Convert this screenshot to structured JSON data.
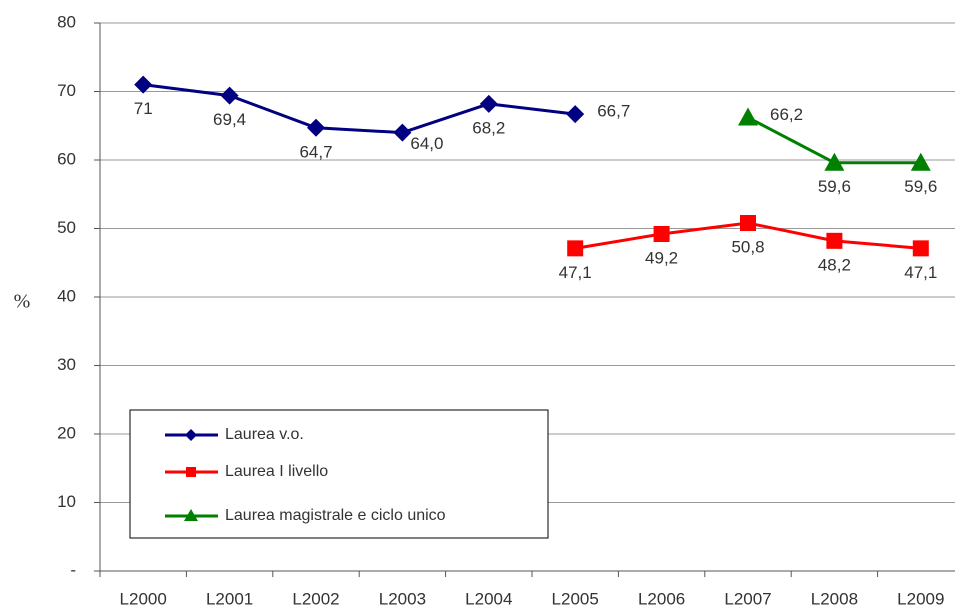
{
  "chart_data": {
    "type": "line",
    "ylabel": "%",
    "categories": [
      "L2000",
      "L2001",
      "L2002",
      "L2003",
      "L2004",
      "L2005",
      "L2006",
      "L2007",
      "L2008",
      "L2009"
    ],
    "series": [
      {
        "name": "Laurea v.o.",
        "color": "#000080",
        "marker": "diamond",
        "values": [
          71,
          69.4,
          64.7,
          64.0,
          68.2,
          66.7,
          null,
          null,
          null,
          null
        ],
        "value_labels": [
          "71",
          "69,4",
          "64,7",
          "64,0",
          "68,2",
          "66,7",
          null,
          null,
          null,
          null
        ]
      },
      {
        "name": "Laurea I livello",
        "color": "#ff0000",
        "marker": "square",
        "values": [
          null,
          null,
          null,
          null,
          null,
          47.1,
          49.2,
          50.8,
          48.2,
          47.1
        ],
        "value_labels": [
          null,
          null,
          null,
          null,
          null,
          "47,1",
          "49,2",
          "50,8",
          "48,2",
          "47,1"
        ]
      },
      {
        "name": "Laurea magistrale e ciclo unico",
        "color": "#008000",
        "marker": "triangle",
        "values": [
          null,
          null,
          null,
          null,
          null,
          null,
          null,
          66.2,
          59.6,
          59.6
        ],
        "value_labels": [
          null,
          null,
          null,
          null,
          null,
          null,
          null,
          "66,2",
          "59,6",
          "59,6"
        ]
      }
    ],
    "ylim": [
      0,
      80
    ],
    "yticks": [
      {
        "value": 0,
        "label": "-"
      },
      10,
      20,
      30,
      40,
      50,
      60,
      70,
      80
    ],
    "grid": true,
    "legend": "lower left"
  }
}
